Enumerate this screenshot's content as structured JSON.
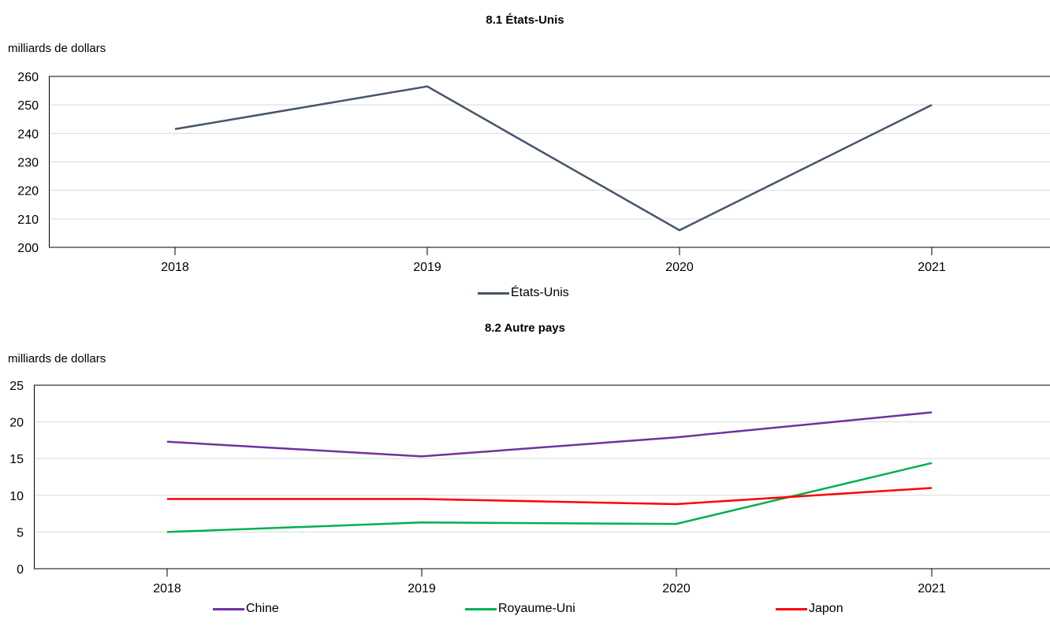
{
  "chart_data": [
    {
      "type": "line",
      "title": "8.1 États-Unis",
      "ylabel": "milliards de dollars",
      "categories": [
        "2018",
        "2019",
        "2020",
        "2021"
      ],
      "ylim": [
        200,
        260
      ],
      "yticks": [
        200,
        210,
        220,
        230,
        240,
        250,
        260
      ],
      "grid": true,
      "legend": "bottom",
      "series": [
        {
          "name": "États-Unis",
          "color": "#44546a",
          "values": [
            241.5,
            256.5,
            206,
            250
          ]
        }
      ]
    },
    {
      "type": "line",
      "title": "8.2 Autre pays",
      "ylabel": "milliards de dollars",
      "categories": [
        "2018",
        "2019",
        "2020",
        "2021"
      ],
      "ylim": [
        0,
        25
      ],
      "yticks": [
        0,
        5,
        10,
        15,
        20,
        25
      ],
      "grid": true,
      "legend": "bottom",
      "series": [
        {
          "name": "Chine",
          "color": "#7030a0",
          "values": [
            17.3,
            15.3,
            17.9,
            21.3
          ]
        },
        {
          "name": "Royaume-Uni",
          "color": "#00b050",
          "values": [
            5,
            6.3,
            6.1,
            14.4
          ]
        },
        {
          "name": "Japon",
          "color": "#ff0000",
          "values": [
            9.5,
            9.5,
            8.8,
            11
          ]
        }
      ]
    }
  ]
}
